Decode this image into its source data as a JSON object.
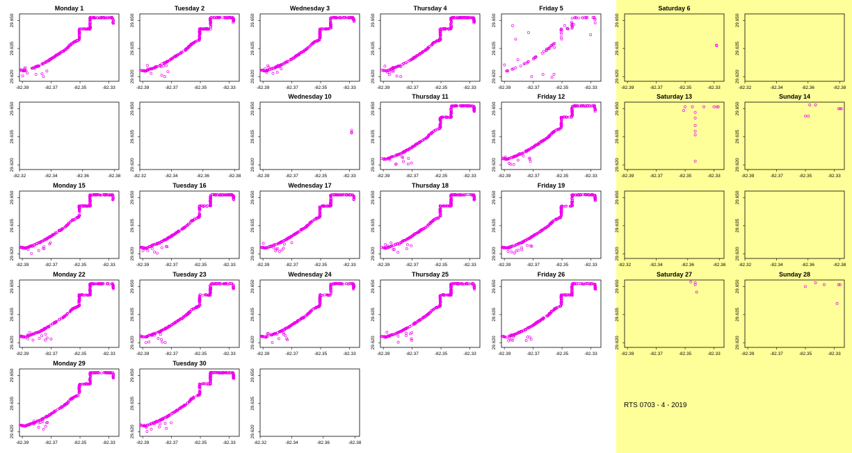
{
  "footer": "RTS 0703 - 4 - 2019",
  "colors": {
    "points": "#ee00ee",
    "weekend_background": "#ffff99",
    "axes": "#000000"
  },
  "chart_data": {
    "type": "scatter",
    "marker": "open-circle",
    "x_ticks_route": [
      "-82.39",
      "-82.37",
      "-82.35",
      "-82.33"
    ],
    "x_ticks_alt": [
      "-82.32",
      "-82.34",
      "-82.36",
      "-82.38"
    ],
    "x_ticks_alt2": [
      "-82.32",
      "-82.34",
      "-82.36",
      "-82.38"
    ],
    "y_ticks": [
      "29.620",
      "29.635",
      "29.650"
    ],
    "xlim_route": [
      -82.392,
      -82.323
    ],
    "xlim_empty": [
      -82.32,
      -82.383
    ],
    "ylim": [
      29.6175,
      29.6535
    ],
    "panels": [
      {
        "title": "Monday 1",
        "weekend": false,
        "x_axis": "route",
        "route": true
      },
      {
        "title": "Tuesday 2",
        "weekend": false,
        "x_axis": "route",
        "route": true
      },
      {
        "title": "Wednesday 3",
        "weekend": false,
        "x_axis": "route",
        "route": true
      },
      {
        "title": "Thursday 4",
        "weekend": false,
        "x_axis": "route",
        "route": true
      },
      {
        "title": "Friday 5",
        "weekend": false,
        "x_axis": "route",
        "route": true,
        "sparse": true
      },
      {
        "title": "Saturday 6",
        "weekend": true,
        "x_axis": "route",
        "route": false,
        "points": [
          [
            -82.328,
            29.6365
          ],
          [
            -82.3283,
            29.6368
          ]
        ]
      },
      {
        "title": "",
        "weekend": true,
        "x_axis": "alt",
        "route": false
      },
      {
        "title": "",
        "weekend": false,
        "x_axis": "alt",
        "route": false
      },
      {
        "title": "",
        "weekend": false,
        "x_axis": "alt",
        "route": false
      },
      {
        "title": "Wednesday 10",
        "weekend": false,
        "x_axis": "route",
        "route": false,
        "points": [
          [
            -82.3285,
            29.6385
          ],
          [
            -82.3285,
            29.6375
          ],
          [
            -82.3286,
            29.637
          ]
        ]
      },
      {
        "title": "Thursday 11",
        "weekend": false,
        "x_axis": "route",
        "route": true
      },
      {
        "title": "Friday 12",
        "weekend": false,
        "x_axis": "route",
        "route": true
      },
      {
        "title": "Saturday 13",
        "weekend": true,
        "x_axis": "route",
        "route": false,
        "points": [
          [
            -82.35,
            29.651
          ],
          [
            -82.351,
            29.649
          ],
          [
            -82.345,
            29.651
          ],
          [
            -82.343,
            29.648
          ],
          [
            -82.343,
            29.645
          ],
          [
            -82.343,
            29.641
          ],
          [
            -82.343,
            29.638
          ],
          [
            -82.343,
            29.636
          ],
          [
            -82.343,
            29.622
          ],
          [
            -82.337,
            29.651
          ],
          [
            -82.33,
            29.651
          ],
          [
            -82.328,
            29.651
          ],
          [
            -82.327,
            29.651
          ]
        ]
      },
      {
        "title": "Sunday 14",
        "weekend": true,
        "x_axis": "route",
        "route": false,
        "points": [
          [
            -82.35,
            29.646
          ],
          [
            -82.348,
            29.646
          ],
          [
            -82.347,
            29.652
          ],
          [
            -82.343,
            29.652
          ],
          [
            -82.327,
            29.65
          ],
          [
            -82.326,
            29.65
          ],
          [
            -82.325,
            29.65
          ]
        ]
      },
      {
        "title": "Monday 15",
        "weekend": false,
        "x_axis": "route",
        "route": true
      },
      {
        "title": "Tuesday 16",
        "weekend": false,
        "x_axis": "route",
        "route": true
      },
      {
        "title": "Wednesday 17",
        "weekend": false,
        "x_axis": "route",
        "route": true
      },
      {
        "title": "Thursday 18",
        "weekend": false,
        "x_axis": "route",
        "route": true
      },
      {
        "title": "Friday 19",
        "weekend": false,
        "x_axis": "route",
        "route": true
      },
      {
        "title": "",
        "weekend": true,
        "x_axis": "alt",
        "route": false
      },
      {
        "title": "",
        "weekend": true,
        "x_axis": "alt",
        "route": false
      },
      {
        "title": "Monday 22",
        "weekend": false,
        "x_axis": "route",
        "route": true
      },
      {
        "title": "Tuesday 23",
        "weekend": false,
        "x_axis": "route",
        "route": true
      },
      {
        "title": "Wednesday 24",
        "weekend": false,
        "x_axis": "route",
        "route": true
      },
      {
        "title": "Thursday 25",
        "weekend": false,
        "x_axis": "route",
        "route": true
      },
      {
        "title": "Friday 26",
        "weekend": false,
        "x_axis": "route",
        "route": true
      },
      {
        "title": "Saturday 27",
        "weekend": true,
        "x_axis": "route",
        "route": false,
        "points": [
          [
            -82.346,
            29.6525
          ],
          [
            -82.343,
            29.652
          ],
          [
            -82.343,
            29.651
          ],
          [
            -82.342,
            29.647
          ]
        ]
      },
      {
        "title": "Sunday 28",
        "weekend": true,
        "x_axis": "route",
        "route": false,
        "points": [
          [
            -82.35,
            29.65
          ],
          [
            -82.343,
            29.652
          ],
          [
            -82.337,
            29.651
          ],
          [
            -82.327,
            29.651
          ],
          [
            -82.326,
            29.651
          ],
          [
            -82.328,
            29.641
          ]
        ]
      },
      {
        "title": "Monday 29",
        "weekend": false,
        "x_axis": "route",
        "route": true
      },
      {
        "title": "Tuesday 30",
        "weekend": false,
        "x_axis": "route",
        "route": true
      },
      {
        "title": "",
        "weekend": false,
        "x_axis": "alt",
        "route": false
      }
    ]
  }
}
